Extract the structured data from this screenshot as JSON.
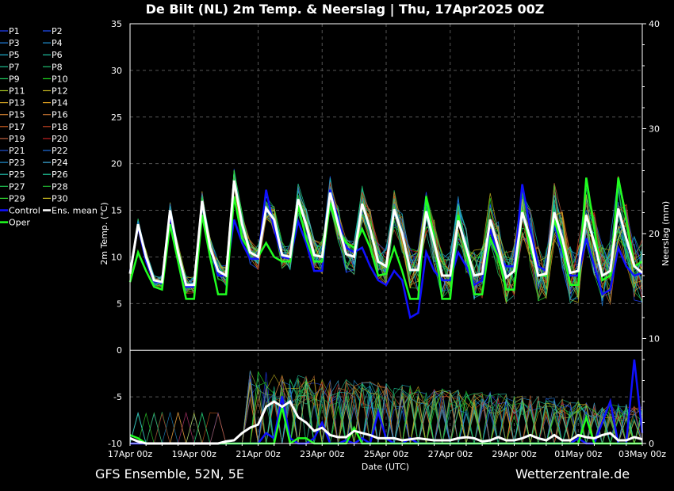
{
  "chart_data": {
    "type": "line",
    "title": "De Bilt  (NL)  2m Temp. & Neerslag | Thu, 17Apr2025 00Z",
    "xlabel": "Date (UTC)",
    "ylabel_left": "2m Temp. (°C)",
    "ylabel_right": "Neerslag (mm)",
    "ylim_left": [
      -10,
      35
    ],
    "ylim_right": [
      0,
      40
    ],
    "yticks_left": [
      35,
      30,
      25,
      20,
      15,
      10,
      5,
      0,
      -5,
      -10
    ],
    "yticks_right": [
      40,
      30,
      20,
      10,
      0
    ],
    "xticks": [
      "17Apr 00z",
      "19Apr 00z",
      "21Apr 00z",
      "23Apr 00z",
      "25Apr 00z",
      "27Apr 00z",
      "29Apr 00z",
      "01May 00z",
      "03May 00z"
    ],
    "x_hours": [
      0,
      48,
      96,
      144,
      192,
      240,
      288,
      336,
      384
    ],
    "grid": true,
    "legend_position": "left",
    "legend": [
      {
        "name": "P1",
        "color": "#2040ff"
      },
      {
        "name": "P2",
        "color": "#2050ff"
      },
      {
        "name": "P3",
        "color": "#2080e0"
      },
      {
        "name": "P4",
        "color": "#2090d0"
      },
      {
        "name": "P5",
        "color": "#20b0d0"
      },
      {
        "name": "P6",
        "color": "#20c0a0"
      },
      {
        "name": "P7",
        "color": "#20c090"
      },
      {
        "name": "P8",
        "color": "#20c070"
      },
      {
        "name": "P9",
        "color": "#20d060"
      },
      {
        "name": "P10",
        "color": "#20e020"
      },
      {
        "name": "P11",
        "color": "#a0c020"
      },
      {
        "name": "P12",
        "color": "#c0b020"
      },
      {
        "name": "P13",
        "color": "#d0a020"
      },
      {
        "name": "P14",
        "color": "#e0a020"
      },
      {
        "name": "P15",
        "color": "#d08030"
      },
      {
        "name": "P16",
        "color": "#c07030"
      },
      {
        "name": "P17",
        "color": "#d06020"
      },
      {
        "name": "P18",
        "color": "#c04020"
      },
      {
        "name": "P19",
        "color": "#c06040"
      },
      {
        "name": "P20",
        "color": "#c02020"
      },
      {
        "name": "P21",
        "color": "#2050d0"
      },
      {
        "name": "P22",
        "color": "#2070e0"
      },
      {
        "name": "P23",
        "color": "#2090d0"
      },
      {
        "name": "P24",
        "color": "#40b0e0"
      },
      {
        "name": "P25",
        "color": "#20c0b0"
      },
      {
        "name": "P26",
        "color": "#20d0a0"
      },
      {
        "name": "P27",
        "color": "#20c050"
      },
      {
        "name": "P28",
        "color": "#20b030"
      },
      {
        "name": "P29",
        "color": "#30e030"
      },
      {
        "name": "P30",
        "color": "#d0c020"
      },
      {
        "name": "Control",
        "color": "#1010ff"
      },
      {
        "name": "Ens. mean",
        "color": "#ffffff"
      },
      {
        "name": "Oper",
        "color": "#20ff20"
      }
    ],
    "series": [
      {
        "name": "Ens. mean",
        "color": "#ffffff",
        "x": [
          0,
          6,
          12,
          18,
          24,
          30,
          36,
          42,
          48,
          54,
          60,
          66,
          72,
          78,
          84,
          90,
          96,
          102,
          108,
          114,
          120,
          126,
          132,
          138,
          144,
          150,
          156,
          162,
          168,
          174,
          180,
          186,
          192,
          198,
          204,
          210,
          216,
          222,
          228,
          234,
          240,
          246,
          252,
          258,
          264,
          270,
          276,
          282,
          288,
          294,
          300,
          306,
          312,
          318,
          324,
          330,
          336,
          342,
          348,
          354,
          360,
          366,
          372,
          378,
          384
        ],
        "y": [
          8.2,
          13.5,
          10,
          7.5,
          7.3,
          15,
          10.5,
          7,
          7,
          16,
          11,
          8.5,
          8,
          18.2,
          13.5,
          10.5,
          10,
          15.2,
          14,
          10.2,
          10,
          16.2,
          13.5,
          10.2,
          10,
          16.9,
          13.5,
          10.3,
          10,
          15.7,
          13,
          9.5,
          9,
          15.1,
          12.5,
          8.6,
          8.6,
          14.9,
          11.5,
          8,
          8,
          13.9,
          11,
          8,
          8.2,
          14,
          11,
          7.8,
          8.5,
          14.8,
          12,
          8,
          8.2,
          14.8,
          12,
          8.3,
          8.5,
          14.5,
          11.5,
          8,
          8.5,
          15.2,
          12,
          9,
          8.3
        ]
      },
      {
        "name": "Control",
        "color": "#1010ff",
        "x": [
          0,
          6,
          12,
          18,
          24,
          30,
          36,
          42,
          48,
          54,
          60,
          66,
          72,
          78,
          84,
          90,
          96,
          102,
          108,
          114,
          120,
          126,
          132,
          138,
          144,
          150,
          156,
          162,
          168,
          174,
          180,
          186,
          192,
          198,
          204,
          210,
          216,
          222,
          228,
          234,
          240,
          246,
          252,
          258,
          264,
          270,
          276,
          282,
          288,
          294,
          300,
          306,
          312,
          318,
          324,
          330,
          336,
          342,
          348,
          354,
          360,
          366,
          372,
          378,
          384
        ],
        "y": [
          8.4,
          13.3,
          9.5,
          7.4,
          7.2,
          14.5,
          10,
          6.8,
          6.8,
          15.8,
          11,
          8,
          8,
          14,
          11.5,
          9.8,
          9.8,
          17.2,
          13,
          10,
          9.8,
          13.8,
          11.5,
          8.5,
          8.5,
          17.2,
          14,
          11,
          10.5,
          11,
          9,
          7.5,
          7,
          8.5,
          7.5,
          3.5,
          4,
          10.5,
          8.5,
          7.5,
          7.5,
          10.5,
          9,
          7,
          7.5,
          13,
          10,
          9,
          9,
          17.8,
          13,
          9,
          8.5,
          13.5,
          10.5,
          8,
          8,
          12,
          9,
          6,
          6.5,
          11,
          9,
          8,
          8.3
        ]
      },
      {
        "name": "Oper",
        "color": "#20ff20",
        "x": [
          0,
          6,
          12,
          18,
          24,
          30,
          36,
          42,
          48,
          54,
          60,
          66,
          72,
          78,
          84,
          90,
          96,
          102,
          108,
          114,
          120,
          126,
          132,
          138,
          144,
          150,
          156,
          162,
          168,
          174,
          180,
          186,
          192,
          198,
          204,
          210,
          216,
          222,
          228,
          234,
          240,
          246,
          252,
          258,
          264,
          270,
          276,
          282,
          288,
          294,
          300,
          306,
          312,
          318,
          324,
          330,
          336,
          342,
          348,
          354,
          360,
          366,
          372,
          378,
          384
        ],
        "y": [
          7.3,
          10.5,
          8.5,
          6.8,
          6.5,
          13.5,
          9.5,
          5.5,
          5.5,
          14.5,
          10,
          6,
          6,
          16.5,
          12,
          10.5,
          10,
          11.5,
          10,
          9.5,
          9.5,
          15.5,
          12,
          9.5,
          9.5,
          15.8,
          13,
          11.5,
          11,
          13,
          11,
          8,
          8.2,
          11,
          8.5,
          5.5,
          5.5,
          16.5,
          12,
          5.5,
          5.5,
          14.5,
          10.5,
          6,
          6,
          12,
          10,
          6.5,
          6.5,
          15,
          11,
          8,
          8,
          14,
          11,
          7,
          7,
          18.5,
          13,
          7.5,
          8,
          18.5,
          14,
          9,
          9.5
        ]
      }
    ],
    "precip_series": [
      {
        "name": "Ens. mean",
        "color": "#ffffff",
        "x": [
          0,
          6,
          12,
          18,
          24,
          30,
          36,
          42,
          48,
          54,
          60,
          66,
          72,
          78,
          84,
          90,
          96,
          102,
          108,
          114,
          120,
          126,
          132,
          138,
          144,
          150,
          156,
          162,
          168,
          174,
          180,
          186,
          192,
          198,
          204,
          210,
          216,
          222,
          228,
          234,
          240,
          246,
          252,
          258,
          264,
          270,
          276,
          282,
          288,
          294,
          300,
          306,
          312,
          318,
          324,
          330,
          336,
          342,
          348,
          354,
          360,
          366,
          372,
          378,
          384
        ],
        "y": [
          0.5,
          0.2,
          0,
          0,
          0,
          0,
          0,
          0,
          0,
          0,
          0,
          0,
          0.2,
          0.3,
          1,
          1.5,
          1.8,
          3.5,
          4,
          3.5,
          4,
          2.5,
          2,
          1.2,
          1.5,
          0.8,
          0.6,
          0.6,
          1.2,
          1,
          0.8,
          0.5,
          0.5,
          0.5,
          0.3,
          0.4,
          0.5,
          0.4,
          0.3,
          0.3,
          0.3,
          0.5,
          0.6,
          0.5,
          0.2,
          0.3,
          0.6,
          0.3,
          0.3,
          0.5,
          0.8,
          0.5,
          0.3,
          0.8,
          0.3,
          0.3,
          0.8,
          0.6,
          0.5,
          0.8,
          1,
          0.3,
          0.3,
          0.6,
          0.4
        ]
      },
      {
        "name": "Control",
        "color": "#1010ff",
        "x": [
          0,
          6,
          12,
          18,
          24,
          30,
          36,
          42,
          48,
          54,
          60,
          66,
          72,
          78,
          84,
          90,
          96,
          102,
          108,
          114,
          120,
          126,
          132,
          138,
          144,
          150,
          156,
          162,
          168,
          174,
          180,
          186,
          192,
          198,
          204,
          210,
          216,
          222,
          228,
          234,
          240,
          246,
          252,
          258,
          264,
          270,
          276,
          282,
          288,
          294,
          300,
          306,
          312,
          318,
          324,
          330,
          336,
          342,
          348,
          354,
          360,
          366,
          372,
          378,
          384
        ],
        "y": [
          0,
          0,
          0,
          0,
          0,
          0,
          0,
          0,
          0,
          0,
          0,
          0,
          0,
          0,
          0,
          0,
          0,
          1,
          0.5,
          4.5,
          0.5,
          0,
          0,
          0.5,
          2,
          0,
          0,
          0.3,
          0,
          0.5,
          0,
          3,
          0.5,
          0,
          0,
          0.5,
          0,
          0,
          0,
          0,
          0,
          0,
          0,
          0,
          0,
          0,
          0,
          0,
          0,
          0,
          0,
          0,
          0,
          0,
          0,
          0,
          0.5,
          0,
          0,
          2,
          4,
          0,
          0,
          8,
          1
        ]
      },
      {
        "name": "Oper",
        "color": "#20ff20",
        "x": [
          0,
          6,
          12,
          18,
          24,
          30,
          36,
          42,
          48,
          54,
          60,
          66,
          72,
          78,
          84,
          90,
          96,
          102,
          108,
          114,
          120,
          126,
          132,
          138,
          144,
          150,
          156,
          162,
          168,
          174,
          180,
          186,
          192,
          198,
          204,
          210,
          216,
          222,
          228,
          234,
          240,
          246,
          252,
          258,
          264,
          270,
          276,
          282,
          288,
          294,
          300,
          306,
          312,
          318,
          324,
          330,
          336,
          342,
          348,
          354,
          360,
          366,
          372,
          378,
          384
        ],
        "y": [
          0.8,
          0.5,
          0,
          0,
          0,
          0,
          0,
          0,
          0,
          0,
          0,
          0,
          0,
          0,
          0,
          0,
          0,
          0,
          0,
          3.5,
          0,
          0.5,
          0.5,
          0,
          0,
          0,
          0,
          0,
          1.5,
          0,
          0,
          0,
          0,
          0,
          0,
          0,
          0,
          0,
          0,
          0,
          0,
          0,
          0,
          0,
          0,
          0,
          0,
          0,
          0,
          0,
          0,
          0,
          0,
          0,
          0,
          0,
          0,
          2.5,
          0,
          0,
          0,
          0,
          0,
          0,
          0
        ]
      }
    ]
  },
  "footer": {
    "left": "GFS Ensemble, 52N, 5E",
    "right": "Wetterzentrale.de"
  }
}
